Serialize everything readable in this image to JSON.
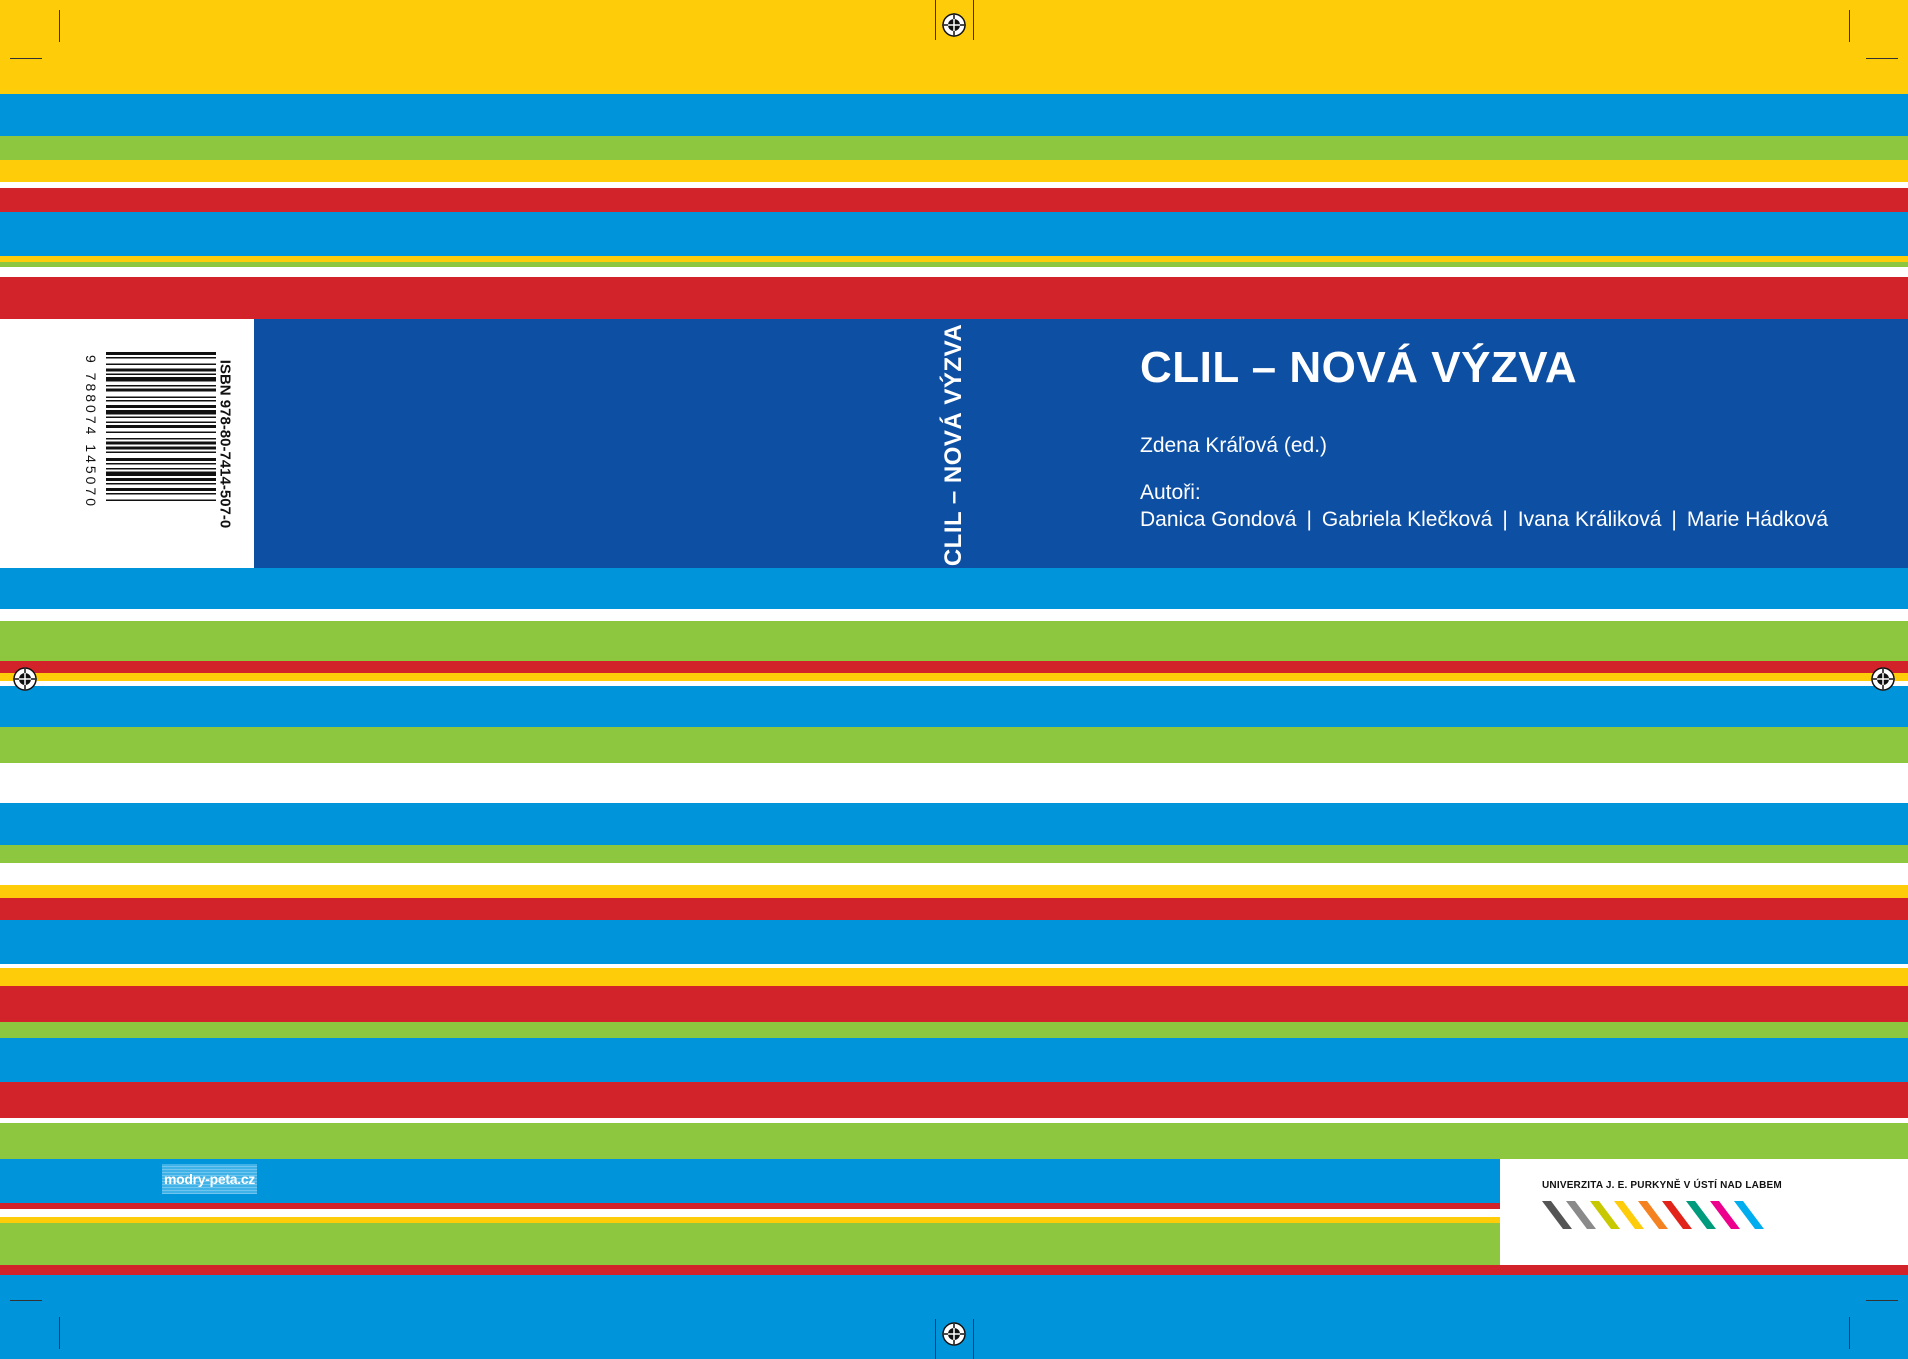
{
  "cover": {
    "title": "CLIL – NOVÁ VÝZVA",
    "spine_title": "CLIL – NOVÁ VÝZVA",
    "editor": "Zdena Kráľová (ed.)",
    "authors_label": "Autoři:",
    "authors": [
      "Danica Gondová",
      "Gabriela Klečková",
      "Ivana Králiková",
      "Marie Hádková"
    ],
    "authors_separator": "|"
  },
  "back": {
    "isbn": "ISBN 978-80-7414-507-0",
    "barcode_digits": "9 788074 145070",
    "publisher": "modry-peta.cz"
  },
  "logo": {
    "university_name": "UNIVERZITA J. E. PURKYNĚ V ÚSTÍ NAD LABEM",
    "colors": [
      "#555555",
      "#8a8a8a",
      "#c8c800",
      "#ffcc09",
      "#f58220",
      "#e2231a",
      "#009a7c",
      "#ec008c",
      "#00aeef"
    ]
  },
  "palette": {
    "yellow": "#ffcc09",
    "blue": "#0095da",
    "green": "#8dc63f",
    "red": "#d2232a",
    "navy": "#0d4fa3"
  }
}
